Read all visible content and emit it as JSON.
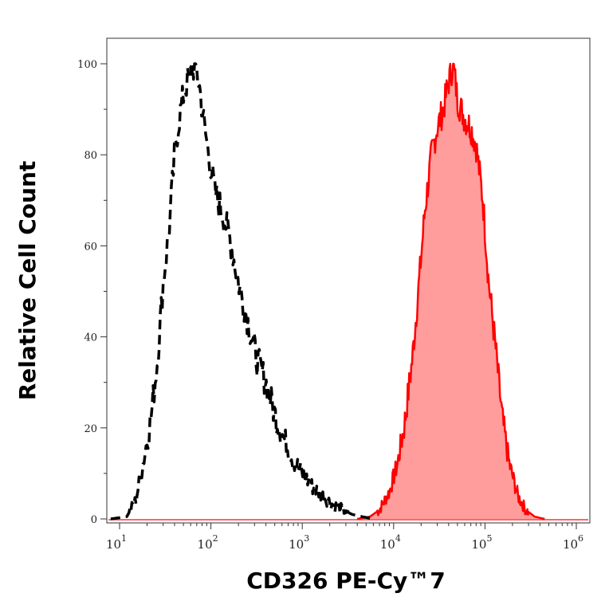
{
  "chart_data": {
    "type": "area",
    "title": "",
    "xlabel": "CD326 PE-Cy™7",
    "ylabel": "Relative Cell Count",
    "x_scale": "log",
    "xlim": [
      10,
      1000000
    ],
    "ylim": [
      0,
      100
    ],
    "x_ticks": [
      {
        "value": 10,
        "base": "10",
        "exp": "1"
      },
      {
        "value": 100,
        "base": "10",
        "exp": "2"
      },
      {
        "value": 1000,
        "base": "10",
        "exp": "3"
      },
      {
        "value": 10000,
        "base": "10",
        "exp": "4"
      },
      {
        "value": 100000,
        "base": "10",
        "exp": "5"
      },
      {
        "value": 1000000,
        "base": "10",
        "exp": "6"
      }
    ],
    "y_ticks": [
      {
        "value": 0,
        "label": "0"
      },
      {
        "value": 20,
        "label": "20"
      },
      {
        "value": 40,
        "label": "40"
      },
      {
        "value": 60,
        "label": "60"
      },
      {
        "value": 80,
        "label": "80"
      },
      {
        "value": 100,
        "label": "100"
      }
    ],
    "grid": false,
    "legend": "none",
    "series": [
      {
        "style": "dashed-outline",
        "color": "#000000",
        "points": [
          [
            8,
            0
          ],
          [
            12,
            0.5
          ],
          [
            15,
            4
          ],
          [
            18,
            12
          ],
          [
            22,
            22
          ],
          [
            26,
            35
          ],
          [
            30,
            52
          ],
          [
            35,
            64
          ],
          [
            40,
            80
          ],
          [
            45,
            88
          ],
          [
            50,
            93
          ],
          [
            55,
            96
          ],
          [
            60,
            98
          ],
          [
            68,
            100
          ],
          [
            75,
            95
          ],
          [
            85,
            86
          ],
          [
            95,
            80
          ],
          [
            110,
            72
          ],
          [
            130,
            68
          ],
          [
            160,
            62
          ],
          [
            200,
            52
          ],
          [
            250,
            44
          ],
          [
            320,
            35
          ],
          [
            400,
            30
          ],
          [
            500,
            23
          ],
          [
            650,
            17
          ],
          [
            800,
            13
          ],
          [
            1000,
            10
          ],
          [
            1300,
            7
          ],
          [
            1700,
            5
          ],
          [
            2200,
            3
          ],
          [
            2800,
            2
          ],
          [
            3500,
            1
          ],
          [
            4500,
            0.5
          ],
          [
            6000,
            0
          ]
        ]
      },
      {
        "style": "filled",
        "color": "#ff0000",
        "fill_color": "#ff9c9c",
        "points": [
          [
            4000,
            0
          ],
          [
            5500,
            0.5
          ],
          [
            7000,
            2
          ],
          [
            9000,
            6
          ],
          [
            11000,
            12
          ],
          [
            13000,
            20
          ],
          [
            16000,
            35
          ],
          [
            19000,
            52
          ],
          [
            22000,
            68
          ],
          [
            26000,
            80
          ],
          [
            30000,
            86
          ],
          [
            35000,
            90
          ],
          [
            40000,
            96
          ],
          [
            45000,
            100
          ],
          [
            50000,
            92
          ],
          [
            60000,
            88
          ],
          [
            70000,
            86
          ],
          [
            80000,
            82
          ],
          [
            95000,
            70
          ],
          [
            110000,
            52
          ],
          [
            130000,
            38
          ],
          [
            155000,
            22
          ],
          [
            185000,
            12
          ],
          [
            230000,
            5
          ],
          [
            280000,
            2
          ],
          [
            350000,
            0.5
          ],
          [
            450000,
            0
          ]
        ]
      }
    ]
  }
}
